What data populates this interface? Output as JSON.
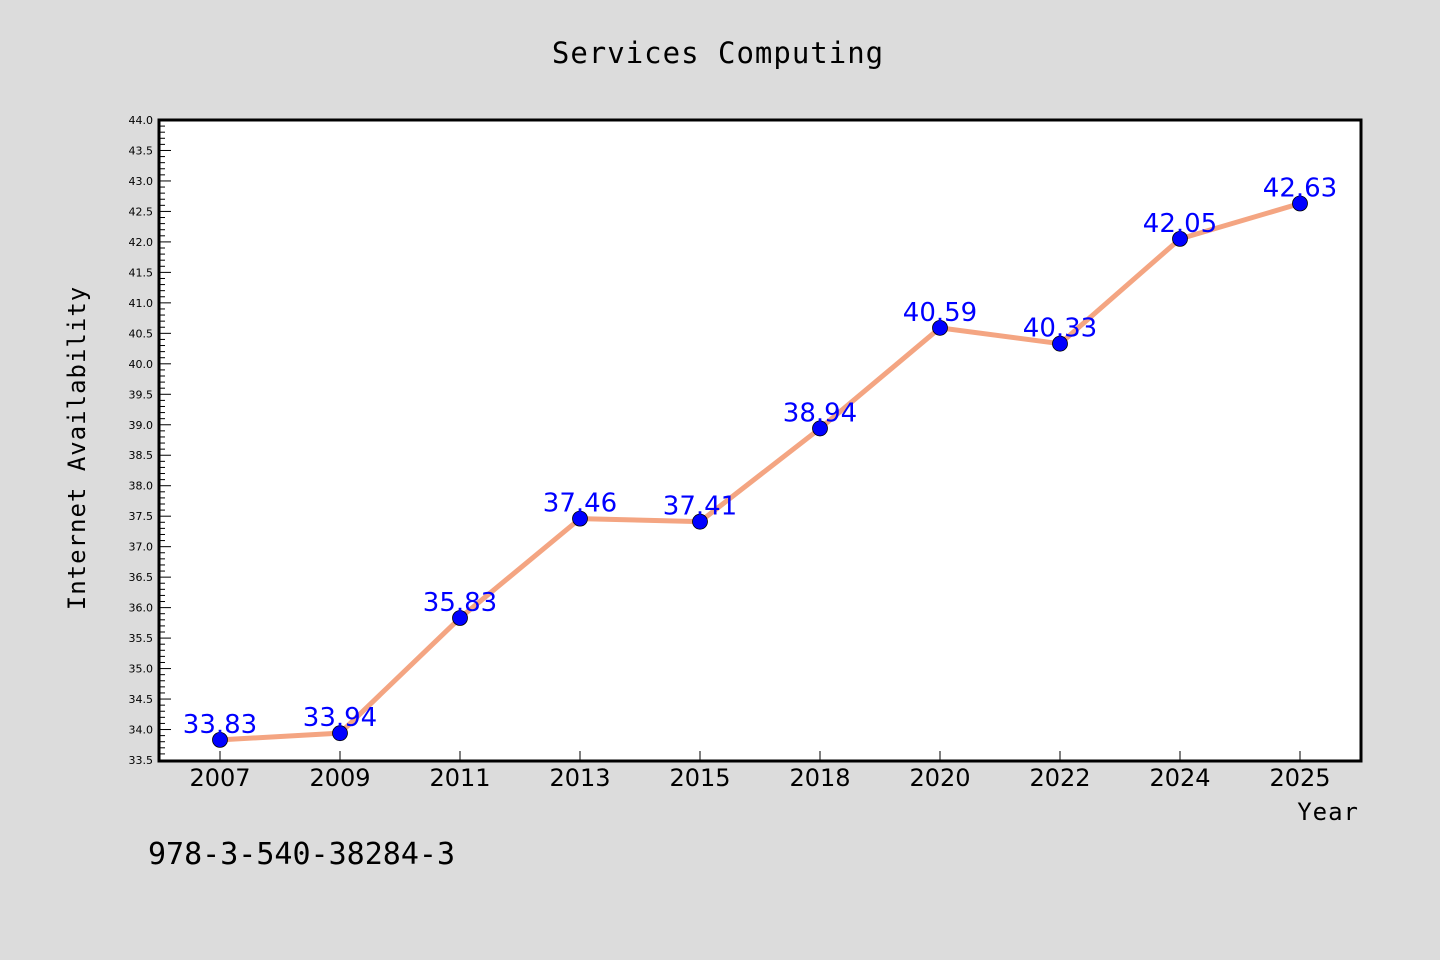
{
  "chart_data": {
    "type": "line",
    "title": "Services Computing",
    "xlabel": "Year",
    "ylabel": "Internet Availability",
    "categories": [
      "2007",
      "2009",
      "2011",
      "2013",
      "2015",
      "2018",
      "2020",
      "2022",
      "2024",
      "2025"
    ],
    "series": [
      {
        "values": [
          33.83,
          33.94,
          35.83,
          37.46,
          37.41,
          38.94,
          40.59,
          40.33,
          42.05,
          42.63
        ],
        "labels": [
          "33.83",
          "33.94",
          "35.83",
          "37.46",
          "37.41",
          "38.94",
          "40.59",
          "40.33",
          "42.05",
          "42.63"
        ],
        "line_color": "#f4a582",
        "marker_color": "#0000ff"
      }
    ],
    "ylim": [
      33.5,
      44.0
    ],
    "ytick_step": 0.5,
    "grid": false,
    "legend": "none"
  },
  "footer_text": "978-3-540-38284-3",
  "colors": {
    "background": "#dcdcdc",
    "plot_background": "#ffffff",
    "line": "#f4a582",
    "marker": "#0000ff",
    "data_label": "#0000ff"
  }
}
